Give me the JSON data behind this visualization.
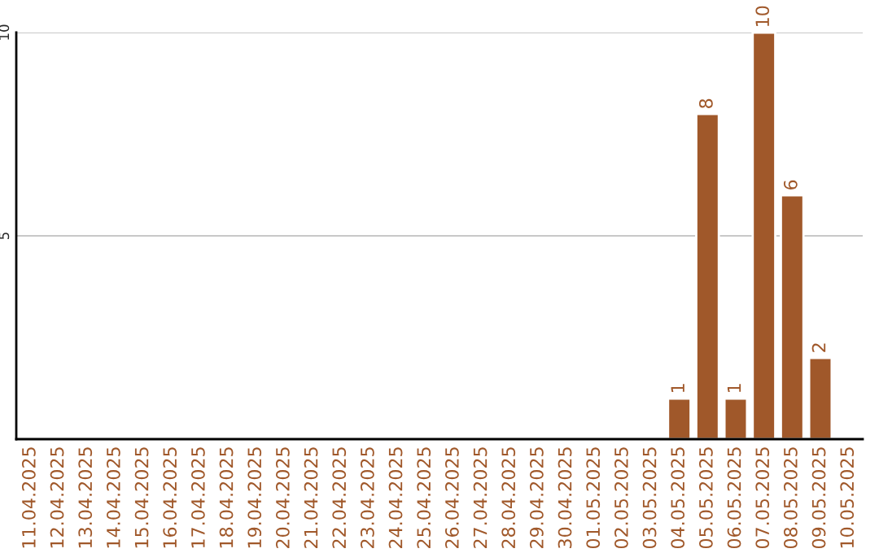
{
  "chart_data": {
    "type": "bar",
    "categories": [
      "11.04.2025",
      "12.04.2025",
      "13.04.2025",
      "14.04.2025",
      "15.04.2025",
      "16.04.2025",
      "17.04.2025",
      "18.04.2025",
      "19.04.2025",
      "20.04.2025",
      "21.04.2025",
      "22.04.2025",
      "23.04.2025",
      "24.04.2025",
      "25.04.2025",
      "26.04.2025",
      "27.04.2025",
      "28.04.2025",
      "29.04.2025",
      "30.04.2025",
      "01.05.2025",
      "02.05.2025",
      "03.05.2025",
      "04.05.2025",
      "05.05.2025",
      "06.05.2025",
      "07.05.2025",
      "08.05.2025",
      "09.05.2025",
      "10.05.2025"
    ],
    "series": [
      {
        "color": "#a0582a",
        "values": [
          null,
          null,
          null,
          null,
          null,
          null,
          null,
          null,
          null,
          null,
          null,
          null,
          null,
          null,
          null,
          null,
          null,
          null,
          null,
          null,
          null,
          null,
          null,
          1,
          8,
          1,
          10,
          6,
          2,
          null
        ],
        "value_labels": [
          null,
          null,
          null,
          null,
          null,
          null,
          null,
          null,
          null,
          null,
          null,
          null,
          null,
          null,
          null,
          null,
          null,
          null,
          null,
          null,
          null,
          null,
          null,
          "1",
          "8",
          "1",
          "10",
          "6",
          "2",
          null
        ]
      }
    ],
    "ylim": [
      0,
      10
    ],
    "yticks": [
      5,
      10
    ],
    "grid": "y",
    "legend": false
  }
}
